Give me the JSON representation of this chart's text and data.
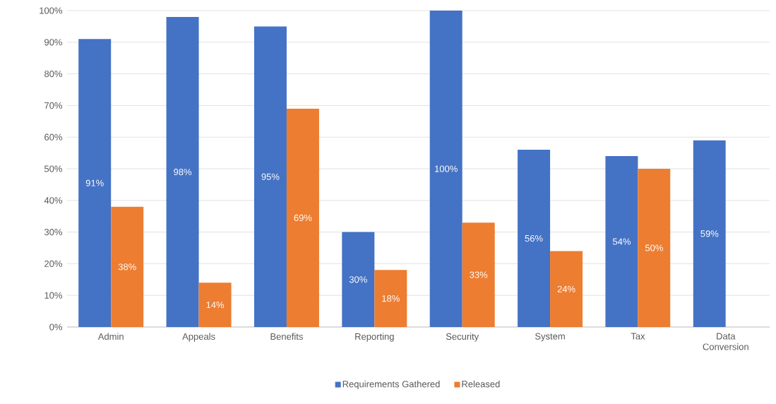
{
  "chart_data": {
    "type": "bar",
    "categories": [
      "Admin",
      "Appeals",
      "Benefits",
      "Reporting",
      "Security",
      "System",
      "Tax",
      "Data Conversion"
    ],
    "series": [
      {
        "name": "Requirements Gathered",
        "color": "#4472c4",
        "values": [
          91,
          98,
          95,
          30,
          100,
          56,
          54,
          59
        ],
        "value_labels": [
          "91%",
          "98%",
          "95%",
          "30%",
          "100%",
          "56%",
          "54%",
          "59%"
        ]
      },
      {
        "name": "Released",
        "color": "#ed7d31",
        "values": [
          38,
          14,
          69,
          18,
          33,
          24,
          50,
          null
        ],
        "value_labels": [
          "38%",
          "14%",
          "69%",
          "18%",
          "33%",
          "24%",
          "50%",
          null
        ]
      }
    ],
    "ylim": [
      0,
      100
    ],
    "yticks": [
      {
        "value": 0,
        "label": "0%"
      },
      {
        "value": 10,
        "label": "10%"
      },
      {
        "value": 20,
        "label": "20%"
      },
      {
        "value": 30,
        "label": "30%"
      },
      {
        "value": 40,
        "label": "40%"
      },
      {
        "value": 50,
        "label": "50%"
      },
      {
        "value": 60,
        "label": "60%"
      },
      {
        "value": 70,
        "label": "70%"
      },
      {
        "value": 80,
        "label": "80%"
      },
      {
        "value": 90,
        "label": "90%"
      },
      {
        "value": 100,
        "label": "100%"
      }
    ],
    "grid": "y",
    "legend": "bottom"
  }
}
